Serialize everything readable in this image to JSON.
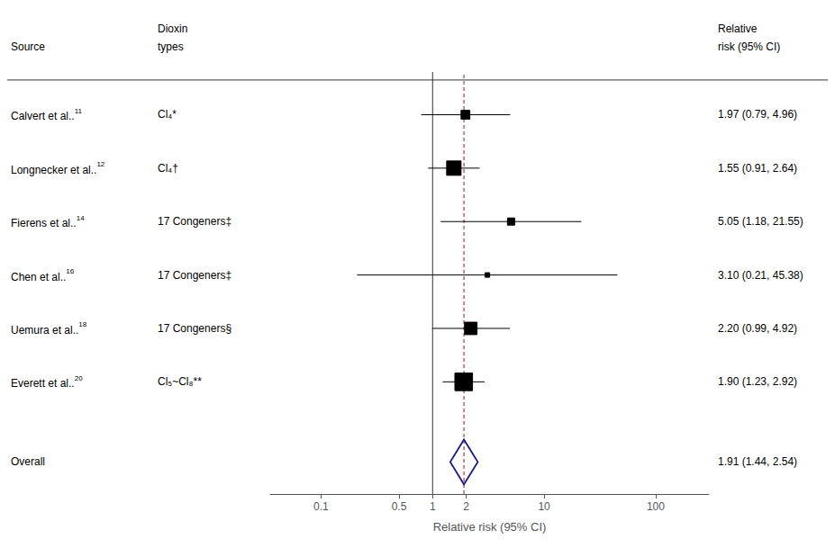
{
  "chart_data": {
    "type": "forest",
    "xlabel": "Relative risk (95% CI)",
    "log": "x",
    "xlim": [
      0.035,
      300
    ],
    "xticks": [
      0.1,
      0.5,
      1,
      2,
      10,
      100
    ],
    "grid": false,
    "tick_labels": "x",
    "color": "#000000",
    "headers": [
      {
        "lines": [
          "Source"
        ]
      },
      {
        "lines": [
          "Dioxin",
          "types"
        ]
      },
      {
        "lines": [
          "Relative",
          "risk (95% CI)"
        ]
      }
    ],
    "studies": [
      {
        "source": "Calvert et al..",
        "ref": "11",
        "dioxin": "Cl₄*",
        "rr": 1.97,
        "ci_lo": 0.79,
        "ci_hi": 4.96,
        "label": "1.97 (0.79, 4.96)",
        "weight": 1.5
      },
      {
        "source": "Longnecker et al..",
        "ref": "12",
        "dioxin": "Cl₄†",
        "rr": 1.55,
        "ci_lo": 0.91,
        "ci_hi": 2.64,
        "label": "1.55 (0.91, 2.64)",
        "weight": 4.0
      },
      {
        "source": "Fierens et al..",
        "ref": "14",
        "dioxin": "17 Congeners‡",
        "rr": 5.05,
        "ci_lo": 1.18,
        "ci_hi": 21.55,
        "label": "5.05 (1.18, 21.55)",
        "weight": 1.0
      },
      {
        "source": "Chen et al..",
        "ref": "16",
        "dioxin": "17 Congeners‡",
        "rr": 3.1,
        "ci_lo": 0.21,
        "ci_hi": 45.38,
        "label": "3.10 (0.21, 45.38)",
        "weight": 0.4
      },
      {
        "source": "Uemura et al..",
        "ref": "18",
        "dioxin": "17 Congeners§",
        "rr": 2.2,
        "ci_lo": 0.99,
        "ci_hi": 4.92,
        "label": "2.20 (0.99, 4.92)",
        "weight": 3.0
      },
      {
        "source": "Everett et al..",
        "ref": "20",
        "dioxin": "Cl₅~Cl₈**",
        "rr": 1.9,
        "ci_lo": 1.23,
        "ci_hi": 2.92,
        "label": "1.90 (1.23, 2.92)",
        "weight": 6.0
      }
    ],
    "overall": {
      "name": "Overall",
      "rr": 1.91,
      "ci_lo": 1.44,
      "ci_hi": 2.54,
      "label": "1.91 (1.44, 2.54)",
      "color": "#1a1a8c"
    },
    "ref_lines": [
      {
        "x": 1.0,
        "color": "#333333",
        "line_style": "solid"
      },
      {
        "x": 1.91,
        "color": "#aa1111",
        "line_style": "dashed"
      }
    ]
  }
}
